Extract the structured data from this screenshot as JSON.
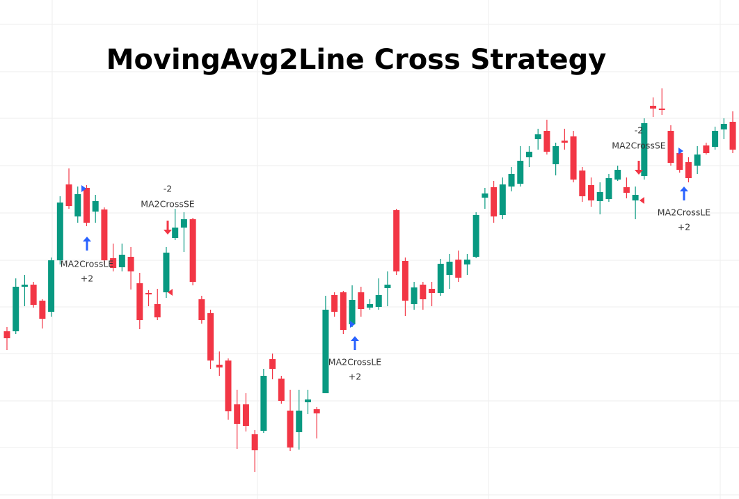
{
  "chart_data": {
    "type": "candlestick",
    "title": "MovingAvg2Line Cross  Strategy",
    "up_color": "#089981",
    "down_color": "#f23645",
    "open": [
      241,
      241,
      305,
      308,
      285,
      269,
      343,
      452,
      406,
      447,
      413,
      416,
      346,
      333,
      348,
      310,
      296,
      280,
      297,
      375,
      390,
      402,
      287,
      267,
      193,
      199,
      136,
      136,
      93,
      98,
      201,
      173,
      127,
      96,
      139,
      129,
      152,
      293,
      297,
      251,
      297,
      275,
      276,
      303,
      415,
      342,
      280,
      308,
      302,
      296,
      322,
      344,
      337,
      348,
      433,
      448,
      408,
      449,
      453,
      491,
      517,
      529,
      481,
      515,
      521,
      472,
      451,
      428,
      431,
      459,
      448,
      429,
      464,
      565,
      561,
      529,
      497,
      484,
      479,
      508,
      506,
      531,
      542
    ],
    "high": [
      247,
      317,
      322,
      312,
      287,
      347,
      435,
      475,
      449,
      451,
      437,
      419,
      367,
      367,
      362,
      325,
      300,
      302,
      362,
      417,
      412,
      404,
      292,
      272,
      212,
      202,
      157,
      152,
      99,
      187,
      209,
      177,
      157,
      157,
      157,
      132,
      292,
      297,
      299,
      307,
      305,
      287,
      317,
      327,
      417,
      347,
      312,
      312,
      312,
      345,
      352,
      357,
      352,
      412,
      447,
      457,
      462,
      477,
      507,
      507,
      532,
      545,
      512,
      532,
      529,
      477,
      462,
      455,
      467,
      479,
      462,
      449,
      547,
      577,
      590,
      537,
      502,
      491,
      507,
      512,
      535,
      547,
      557
    ],
    "low": [
      214,
      237,
      277,
      275,
      245,
      262,
      337,
      417,
      397,
      392,
      397,
      337,
      327,
      327,
      301,
      244,
      277,
      257,
      289,
      372,
      355,
      307,
      252,
      187,
      177,
      114,
      72,
      97,
      39,
      95,
      172,
      137,
      69,
      71,
      122,
      87,
      152,
      262,
      237,
      247,
      262,
      272,
      272,
      277,
      322,
      263,
      272,
      272,
      277,
      292,
      302,
      312,
      322,
      346,
      417,
      397,
      402,
      442,
      449,
      477,
      502,
      495,
      465,
      502,
      455,
      427,
      420,
      409,
      427,
      457,
      432,
      402,
      459,
      549,
      552,
      479,
      469,
      455,
      467,
      495,
      502,
      517,
      497
    ],
    "close": [
      231,
      305,
      308,
      279,
      259,
      343,
      426,
      421,
      438,
      397,
      428,
      343,
      332,
      351,
      327,
      257,
      294,
      261,
      354,
      390,
      402,
      312,
      257,
      199,
      189,
      126,
      108,
      105,
      70,
      177,
      187,
      141,
      74,
      127,
      143,
      123,
      272,
      269,
      243,
      286,
      273,
      280,
      293,
      308,
      327,
      285,
      304,
      287,
      296,
      338,
      341,
      318,
      344,
      408,
      439,
      406,
      452,
      467,
      486,
      499,
      524,
      499,
      507,
      512,
      459,
      435,
      429,
      441,
      461,
      473,
      440,
      437,
      540,
      561,
      559,
      483,
      473,
      461,
      495,
      497,
      529,
      539,
      502
    ],
    "annotations": [
      {
        "signal": "MA2CrossLE",
        "amount": "+2"
      },
      {
        "amount": "-2",
        "signal": "MA2CrossSE"
      },
      {
        "signal": "MA2CrossLE",
        "amount": "+2"
      },
      {
        "amount": "-2",
        "signal": "MA2CrossSE"
      },
      {
        "signal": "MA2CrossLE",
        "amount": "+2"
      }
    ]
  }
}
